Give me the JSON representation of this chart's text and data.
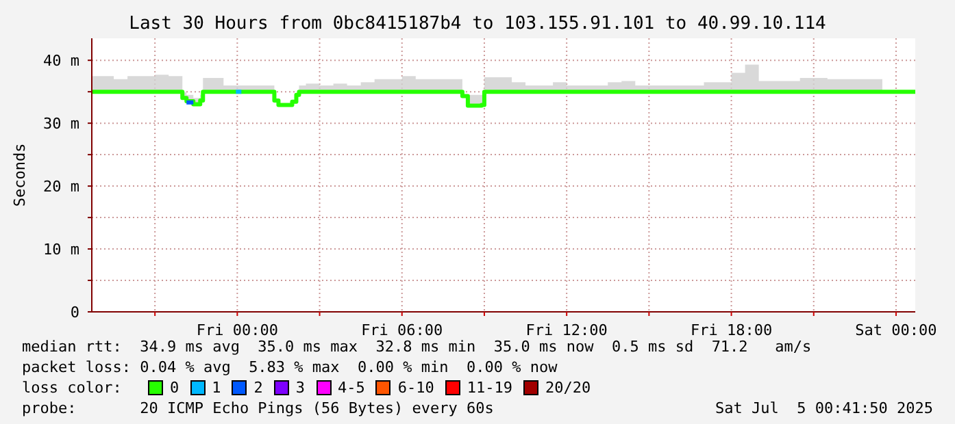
{
  "chart_data": {
    "type": "step",
    "title": "Last 30 Hours from 0bc8415187b4 to 103.155.91.101 to 40.99.10.114",
    "ylabel": "Seconds",
    "xlim": [
      "2025-07-03T18:42",
      "2025-07-05T00:42"
    ],
    "xticks": [
      {
        "value": "2025-07-03T21:00",
        "label": null
      },
      {
        "value": "2025-07-04T00:00",
        "label": "Fri 00:00"
      },
      {
        "value": "2025-07-04T03:00",
        "label": null
      },
      {
        "value": "2025-07-04T06:00",
        "label": "Fri 06:00"
      },
      {
        "value": "2025-07-04T09:00",
        "label": null
      },
      {
        "value": "2025-07-04T12:00",
        "label": "Fri 12:00"
      },
      {
        "value": "2025-07-04T15:00",
        "label": null
      },
      {
        "value": "2025-07-04T18:00",
        "label": "Fri 18:00"
      },
      {
        "value": "2025-07-04T21:00",
        "label": null
      },
      {
        "value": "2025-07-05T00:00",
        "label": "Sat 00:00"
      }
    ],
    "ylim": [
      0,
      43.5
    ],
    "yticks": [
      0,
      {
        "value": 5,
        "label": null
      },
      {
        "value": 10,
        "label": "10 m"
      },
      {
        "value": 15,
        "label": null
      },
      {
        "value": 20,
        "label": "20 m"
      },
      {
        "value": 25,
        "label": null
      },
      {
        "value": 30,
        "label": "30 m"
      },
      {
        "value": 35,
        "label": null
      },
      {
        "value": 40,
        "label": "40 m"
      }
    ],
    "grid": true,
    "legend": "bottom",
    "legend_title": "loss color:",
    "series": [
      {
        "name": "0",
        "color": "#26ff00",
        "x": [
          "2025-07-03T18:42",
          "2025-07-03T19:00",
          "2025-07-03T19:30",
          "2025-07-03T20:00",
          "2025-07-03T20:30",
          "2025-07-03T21:00",
          "2025-07-03T21:30",
          "2025-07-03T22:00",
          "2025-07-03T22:09",
          "2025-07-03T22:24",
          "2025-07-03T22:39",
          "2025-07-03T22:45",
          "2025-07-03T23:00",
          "2025-07-03T23:30",
          "2025-07-04T00:00",
          "2025-07-04T00:30",
          "2025-07-04T01:00",
          "2025-07-04T01:21",
          "2025-07-04T01:30",
          "2025-07-04T02:00",
          "2025-07-04T02:09",
          "2025-07-04T02:15",
          "2025-07-04T02:30",
          "2025-07-04T03:00",
          "2025-07-04T03:30",
          "2025-07-04T04:00",
          "2025-07-04T04:30",
          "2025-07-04T05:00",
          "2025-07-04T05:30",
          "2025-07-04T06:00",
          "2025-07-04T06:30",
          "2025-07-04T07:00",
          "2025-07-04T07:30",
          "2025-07-04T08:00",
          "2025-07-04T08:12",
          "2025-07-04T08:24",
          "2025-07-04T08:54",
          "2025-07-04T09:00",
          "2025-07-04T09:30",
          "2025-07-04T10:00",
          "2025-07-04T10:30",
          "2025-07-04T11:00",
          "2025-07-04T11:30",
          "2025-07-04T12:00",
          "2025-07-04T12:30",
          "2025-07-04T13:00",
          "2025-07-04T13:30",
          "2025-07-04T14:00",
          "2025-07-04T14:30",
          "2025-07-04T15:00",
          "2025-07-04T15:30",
          "2025-07-04T16:00",
          "2025-07-04T16:30",
          "2025-07-04T17:00",
          "2025-07-04T17:30",
          "2025-07-04T18:00",
          "2025-07-04T18:30",
          "2025-07-04T19:00",
          "2025-07-04T19:30",
          "2025-07-04T20:00",
          "2025-07-04T20:30",
          "2025-07-04T21:00",
          "2025-07-04T21:30",
          "2025-07-04T22:00",
          "2025-07-04T22:30",
          "2025-07-04T23:00",
          "2025-07-04T23:30",
          "2025-07-05T00:00",
          "2025-07-05T00:42"
        ],
        "values": [
          35,
          35,
          35,
          35,
          35,
          35,
          35,
          34,
          33.5,
          33,
          33.6,
          35,
          35,
          35,
          35,
          35,
          35,
          33.6,
          32.9,
          33.4,
          34.5,
          35,
          35,
          35,
          35,
          35,
          35,
          35,
          35,
          35,
          35,
          35,
          35,
          35,
          34.3,
          32.8,
          32.9,
          35,
          35,
          35,
          35,
          35,
          35,
          35,
          35,
          35,
          35,
          35,
          35,
          35,
          35,
          35,
          35,
          35,
          35,
          35,
          35,
          35,
          35,
          35,
          35,
          35,
          35,
          35,
          35,
          35,
          35,
          35,
          35
        ],
        "lower": [
          34.8,
          34.8,
          34.8,
          34.8,
          34.8,
          34.8,
          34.8,
          34,
          33.5,
          33,
          33.6,
          34.8,
          34.8,
          34.8,
          34.8,
          34.8,
          34.8,
          33.6,
          32.9,
          33.4,
          34.5,
          34.8,
          34.8,
          34.8,
          34.8,
          34.8,
          34.8,
          34.8,
          34.8,
          34.8,
          34.8,
          34.8,
          34.8,
          34.8,
          34.3,
          32.8,
          32.9,
          34.8,
          34.8,
          34.8,
          34.8,
          34.8,
          34.8,
          34.8,
          34.8,
          34.8,
          34.8,
          34.8,
          34.8,
          34.8,
          34.8,
          34.8,
          34.8,
          34.8,
          34.8,
          34.8,
          34.8,
          34.8,
          34.8,
          34.8,
          34.8,
          34.8,
          34.8,
          34.8,
          34.8,
          34.8,
          35,
          35,
          35
        ],
        "upper": [
          37.5,
          37.5,
          37,
          37.5,
          37.5,
          37.7,
          37.5,
          34.9,
          34.5,
          34,
          34.5,
          37.2,
          37.2,
          36,
          36,
          36,
          36,
          33.6,
          32.9,
          33.4,
          34.5,
          36,
          36.3,
          36,
          36.3,
          36,
          36.5,
          37,
          37,
          37.5,
          37,
          37,
          37,
          37,
          34.5,
          34.5,
          34.5,
          37.3,
          37.3,
          36.5,
          36,
          36,
          36.5,
          36,
          36,
          36,
          36.5,
          36.7,
          36,
          36,
          36,
          36,
          36,
          36.5,
          36.5,
          38,
          39.3,
          36.7,
          36.7,
          36.7,
          37.2,
          37.2,
          37,
          37,
          37,
          37,
          35,
          35,
          35
        ]
      },
      {
        "name": "1",
        "color": "#00b8ff",
        "x": [
          "2025-07-03T23:57",
          "2025-07-04T00:09"
        ],
        "values": [
          35,
          35
        ]
      },
      {
        "name": "2",
        "color": "#0059ff",
        "x": [
          "2025-07-03T22:09",
          "2025-07-03T22:24"
        ],
        "values": [
          33.3,
          33.3
        ]
      },
      {
        "name": "3",
        "color": "#7e00ff"
      },
      {
        "name": "4-5",
        "color": "#ff00ff"
      },
      {
        "name": "6-10",
        "color": "#ff5500"
      },
      {
        "name": "11-19",
        "color": "#ff0000"
      },
      {
        "name": "20/20",
        "color": "#a10000"
      }
    ],
    "annotations": [
      "median rtt:  34.9 ms avg  35.0 ms max  32.8 ms min  35.0 ms now  0.5 ms sd  71.2   am/s",
      "packet loss: 0.04 % avg  5.83 % max  0.00 % min  0.00 % now",
      "probe:       20 ICMP Echo Pings (56 Bytes) every 60s",
      "Sat Jul  5 00:41:50 2025"
    ]
  }
}
